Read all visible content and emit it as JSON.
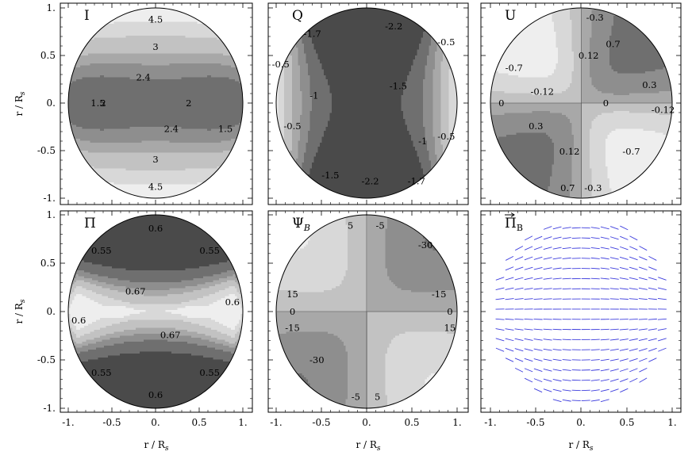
{
  "colors": {
    "background": "#ffffff",
    "frame": "#000000",
    "contour_levels": [
      "#4a4a4a",
      "#6f6f6f",
      "#8e8e8e",
      "#a8a8a8",
      "#c2c2c2",
      "#d8d8d8",
      "#eeeeee"
    ],
    "vector": "#3d3ddd"
  },
  "axes": {
    "x_label": "r / R",
    "x_label_sub": "s",
    "y_label": "r / R",
    "y_label_sub": "s",
    "x_ticks": [
      "-1.",
      "-0.5",
      "0.",
      "0.5",
      "1."
    ],
    "y_ticks": [
      "1.",
      "0.5",
      "0.",
      "-0.5",
      "-1."
    ]
  },
  "chart_data": [
    {
      "type": "heatmap",
      "title": "I",
      "xlim": [
        -1,
        1
      ],
      "ylim": [
        -1,
        1
      ],
      "contour_labels": [
        {
          "text": "4.5",
          "x": 0.0,
          "y": 0.88
        },
        {
          "text": "3",
          "x": 0.0,
          "y": 0.59
        },
        {
          "text": "2.4",
          "x": -0.14,
          "y": 0.27
        },
        {
          "text": "1.5",
          "x": -0.66,
          "y": 0.0
        },
        {
          "text": "2",
          "x": -0.6,
          "y": 0.0
        },
        {
          "text": "2",
          "x": 0.38,
          "y": 0.0
        },
        {
          "text": "1.5",
          "x": 0.8,
          "y": -0.27
        },
        {
          "text": "2.4",
          "x": 0.18,
          "y": -0.27
        },
        {
          "text": "3",
          "x": 0.0,
          "y": -0.59
        },
        {
          "text": "4.5",
          "x": 0.0,
          "y": -0.88
        }
      ]
    },
    {
      "type": "heatmap",
      "title": "Q",
      "xlim": [
        -1,
        1
      ],
      "ylim": [
        -1,
        1
      ],
      "contour_labels": [
        {
          "text": "-1.7",
          "x": -0.6,
          "y": 0.73
        },
        {
          "text": "-2.2",
          "x": 0.3,
          "y": 0.81
        },
        {
          "text": "-0.5",
          "x": -0.95,
          "y": 0.41
        },
        {
          "text": "-0.5",
          "x": 0.88,
          "y": 0.64
        },
        {
          "text": "-1",
          "x": -0.58,
          "y": 0.08
        },
        {
          "text": "-1.5",
          "x": 0.35,
          "y": 0.18
        },
        {
          "text": "-0.5",
          "x": -0.82,
          "y": -0.24
        },
        {
          "text": "-1",
          "x": 0.62,
          "y": -0.4
        },
        {
          "text": "-0.5",
          "x": 0.88,
          "y": -0.35
        },
        {
          "text": "-1.5",
          "x": -0.4,
          "y": -0.76
        },
        {
          "text": "-2.2",
          "x": 0.04,
          "y": -0.82
        },
        {
          "text": "-1.7",
          "x": 0.55,
          "y": -0.82
        }
      ]
    },
    {
      "type": "heatmap",
      "title": "U",
      "xlim": [
        -1,
        1
      ],
      "ylim": [
        -1,
        1
      ],
      "contour_labels": [
        {
          "text": "-0.3",
          "x": 0.15,
          "y": 0.9
        },
        {
          "text": "0.7",
          "x": 0.35,
          "y": 0.62
        },
        {
          "text": "-0.7",
          "x": -0.74,
          "y": 0.37
        },
        {
          "text": "0.12",
          "x": 0.08,
          "y": 0.5
        },
        {
          "text": "0.3",
          "x": 0.75,
          "y": 0.19
        },
        {
          "text": "-0.12",
          "x": -0.43,
          "y": 0.12
        },
        {
          "text": "0",
          "x": -0.88,
          "y": 0.0
        },
        {
          "text": "0",
          "x": 0.27,
          "y": 0.0
        },
        {
          "text": "-0.12",
          "x": 0.9,
          "y": -0.07
        },
        {
          "text": "0.3",
          "x": -0.5,
          "y": -0.24
        },
        {
          "text": "0.12",
          "x": -0.13,
          "y": -0.51
        },
        {
          "text": "-0.7",
          "x": 0.55,
          "y": -0.51
        },
        {
          "text": "0.7",
          "x": -0.15,
          "y": -0.89
        },
        {
          "text": "-0.3",
          "x": 0.13,
          "y": -0.89
        }
      ]
    },
    {
      "type": "heatmap",
      "title": "Π",
      "xlim": [
        -1,
        1
      ],
      "ylim": [
        -1,
        1
      ],
      "contour_labels": [
        {
          "text": "0.6",
          "x": 0.0,
          "y": 0.86
        },
        {
          "text": "0.55",
          "x": -0.62,
          "y": 0.63
        },
        {
          "text": "0.55",
          "x": 0.62,
          "y": 0.63
        },
        {
          "text": "0.67",
          "x": -0.23,
          "y": 0.21
        },
        {
          "text": "0.6",
          "x": 0.88,
          "y": 0.1
        },
        {
          "text": "0.6",
          "x": -0.88,
          "y": -0.09
        },
        {
          "text": "0.67",
          "x": 0.17,
          "y": -0.24
        },
        {
          "text": "0.55",
          "x": -0.62,
          "y": -0.63
        },
        {
          "text": "0.55",
          "x": 0.62,
          "y": -0.63
        },
        {
          "text": "0.6",
          "x": 0.0,
          "y": -0.86
        }
      ]
    },
    {
      "type": "heatmap",
      "title": "Ψ",
      "title_sub": "B",
      "xlim": [
        -1,
        1
      ],
      "ylim": [
        -1,
        1
      ],
      "contour_labels": [
        {
          "text": "5",
          "x": -0.18,
          "y": 0.89
        },
        {
          "text": "-5",
          "x": 0.15,
          "y": 0.89
        },
        {
          "text": "-30",
          "x": 0.65,
          "y": 0.69
        },
        {
          "text": "15",
          "x": -0.82,
          "y": 0.18
        },
        {
          "text": "-15",
          "x": 0.8,
          "y": 0.18
        },
        {
          "text": "0",
          "x": -0.82,
          "y": 0.0
        },
        {
          "text": "0",
          "x": 0.92,
          "y": 0.0
        },
        {
          "text": "-15",
          "x": -0.82,
          "y": -0.17
        },
        {
          "text": "15",
          "x": 0.92,
          "y": -0.17
        },
        {
          "text": "-30",
          "x": -0.55,
          "y": -0.5
        },
        {
          "text": "-5",
          "x": -0.12,
          "y": -0.88
        },
        {
          "text": "5",
          "x": 0.12,
          "y": -0.88
        }
      ]
    },
    {
      "type": "scatter",
      "title": "Π",
      "title_sub": "B",
      "xlim": [
        -1,
        1
      ],
      "ylim": [
        -1,
        1
      ],
      "description_of_marks": "polarization vector field: short dashes inside the unit disk, horizontal on the equator, tilting toward the poles"
    }
  ]
}
